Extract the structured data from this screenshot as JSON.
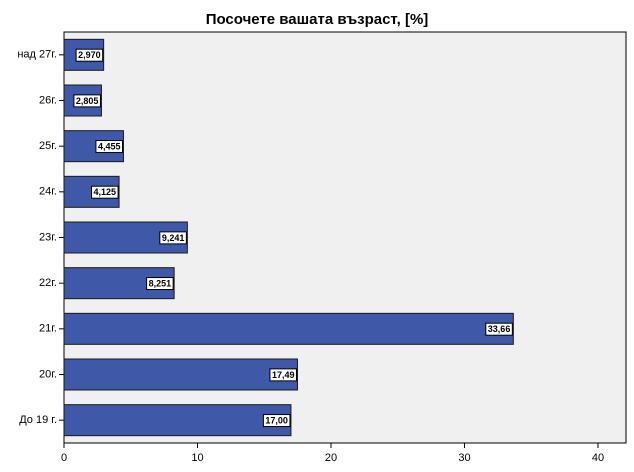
{
  "chart_data": {
    "type": "bar",
    "orientation": "horizontal",
    "title": "Посочете вашата възраст, [%]",
    "categories": [
      "над 27г.",
      "26г.",
      "25г.",
      "24г.",
      "23г.",
      "22г.",
      "21г.",
      "20г.",
      "До 19 г."
    ],
    "values": [
      2.97,
      2.805,
      4.455,
      4.125,
      9.241,
      8.251,
      33.66,
      17.49,
      17.0
    ],
    "value_labels": [
      "2,970",
      "2,805",
      "4,455",
      "4,125",
      "9,241",
      "8,251",
      "33,66",
      "17,49",
      "17,00"
    ],
    "color": "#3f58a8",
    "xlim": [
      0,
      42.1
    ],
    "xticks": [
      0,
      10,
      20,
      30,
      40
    ]
  }
}
